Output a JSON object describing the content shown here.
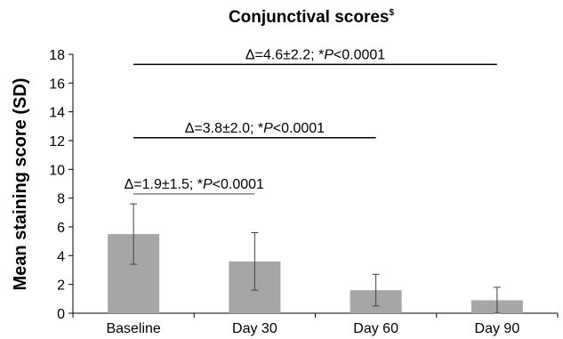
{
  "chart_data": {
    "type": "bar",
    "title": "Conjunctival scores",
    "title_superscript": "$",
    "ylabel": "Mean staining score (SD)",
    "xlabel": "",
    "categories": [
      "Baseline",
      "Day 30",
      "Day 60",
      "Day 90"
    ],
    "values": [
      5.5,
      3.6,
      1.6,
      0.9
    ],
    "errors": [
      2.1,
      2.0,
      1.1,
      0.9
    ],
    "ylim": [
      0,
      18
    ],
    "yticks": [
      "0",
      "2",
      "4",
      "6",
      "8",
      "10",
      "12",
      "14",
      "16",
      "18"
    ],
    "grid": false,
    "bar_color": "#a6a6a6",
    "annotations": [
      {
        "from": "Baseline",
        "to": "Day 30",
        "y": 8.3,
        "delta": "Δ=1.9±1.5; *",
        "p_symbol": "P",
        "p_value": "<0.0001",
        "line_color": "#808080"
      },
      {
        "from": "Baseline",
        "to": "Day 60",
        "y": 12.2,
        "delta": "Δ=3.8±2.0; *",
        "p_symbol": "P",
        "p_value": "<0.0001",
        "line_color": "#000000"
      },
      {
        "from": "Baseline",
        "to": "Day 90",
        "y": 17.3,
        "delta": "Δ=4.6±2.2; *",
        "p_symbol": "P",
        "p_value": "<0.0001",
        "line_color": "#000000"
      }
    ]
  }
}
